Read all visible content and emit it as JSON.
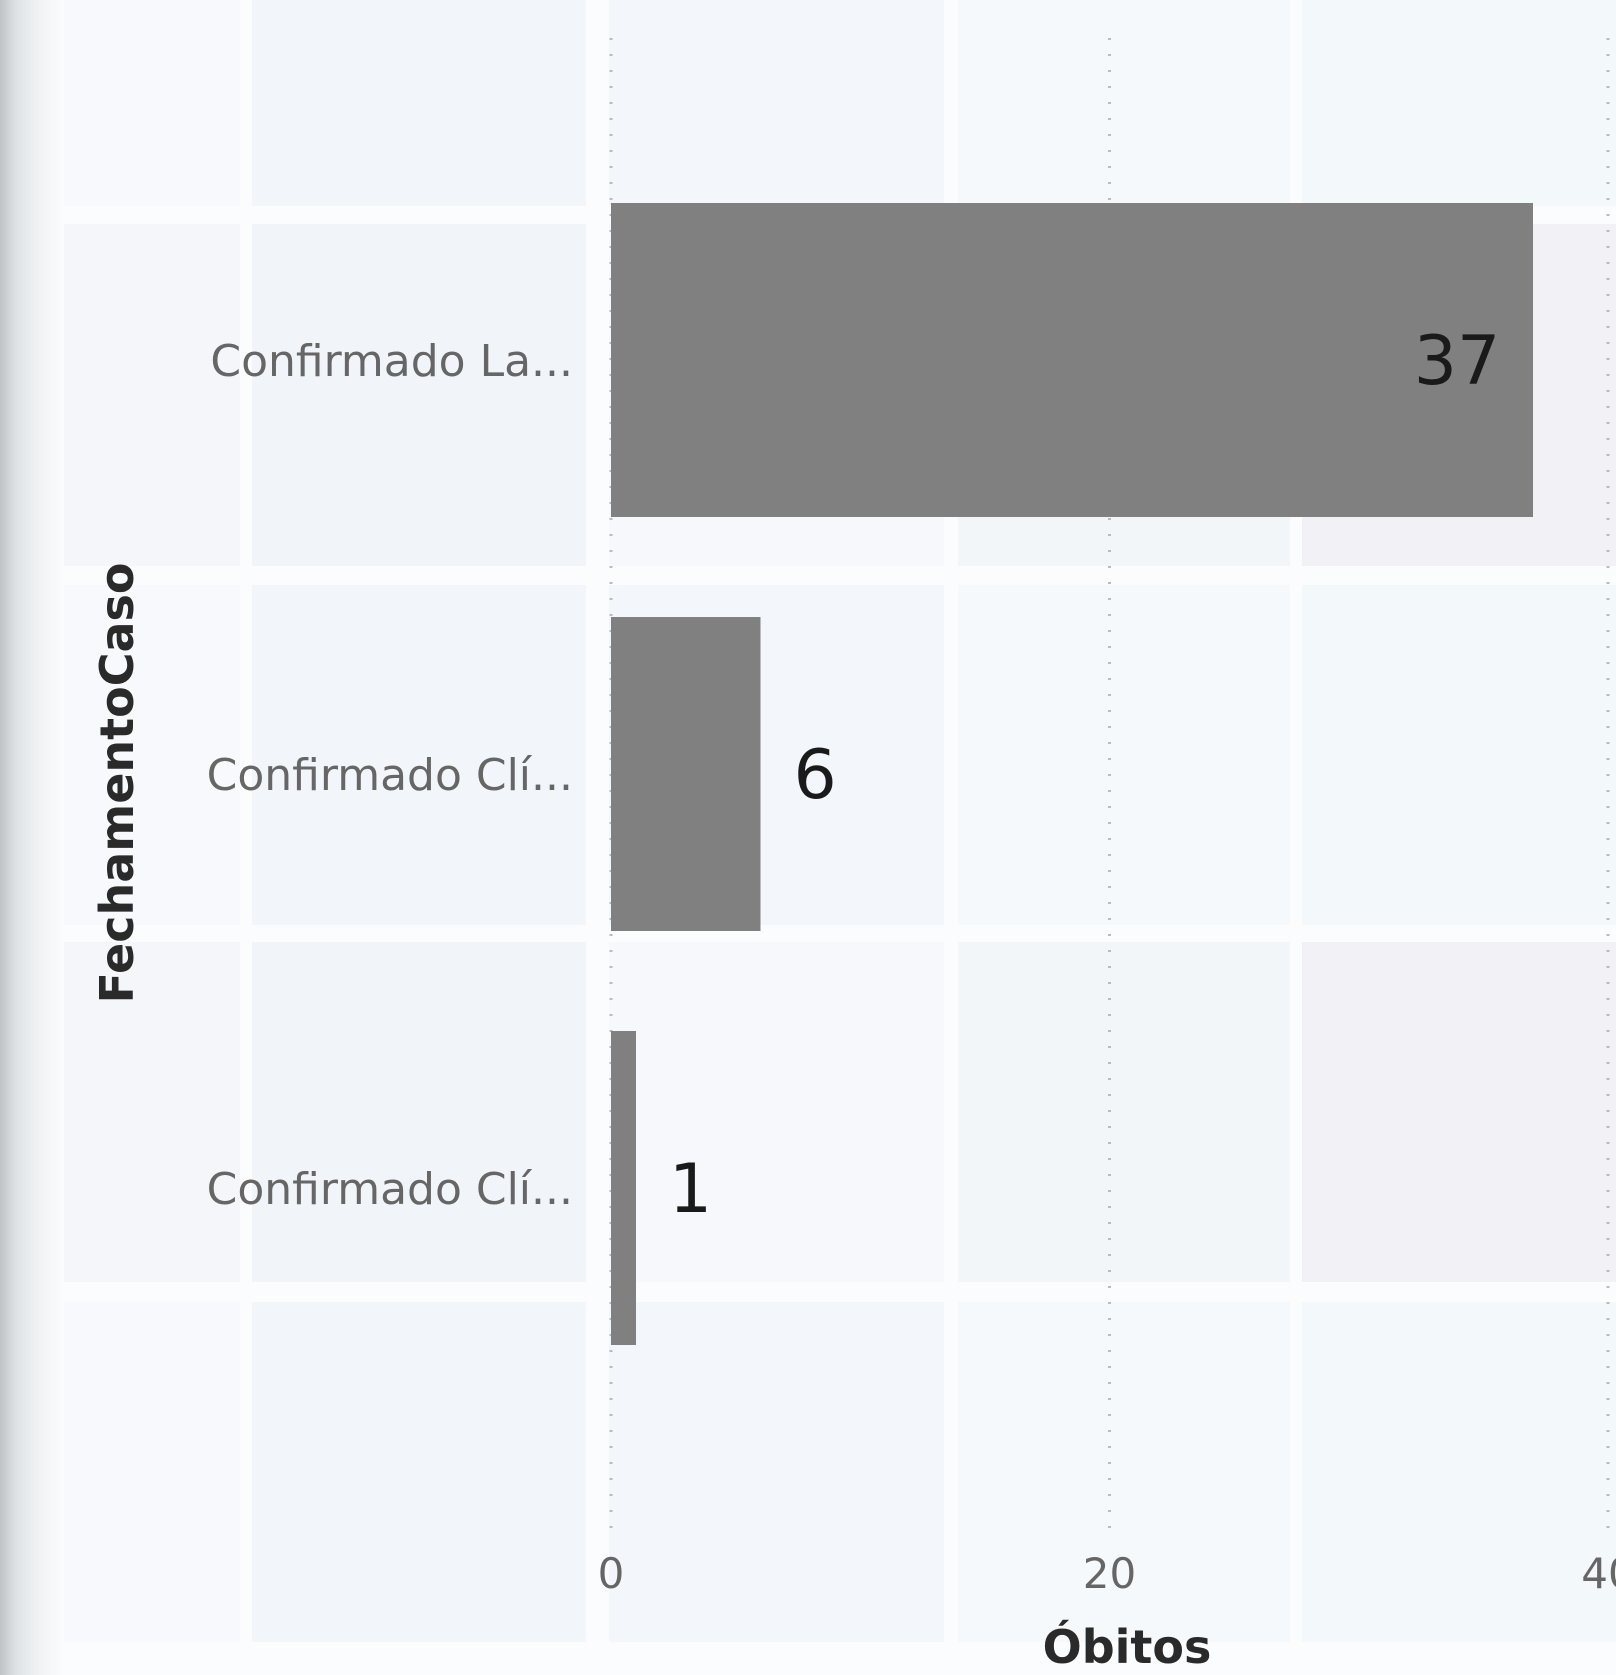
{
  "chart_data": {
    "type": "bar",
    "orientation": "horizontal",
    "categories": [
      "Confirmado La...",
      "Confirmado Clí...",
      "Confirmado Clí..."
    ],
    "values": [
      37,
      6,
      1
    ],
    "data_labels": [
      "37",
      "6",
      "1"
    ],
    "xlabel": "Óbitos",
    "ylabel": "FechamentoCaso",
    "xlim": [
      0,
      40
    ],
    "x_ticks": [
      "0",
      "20",
      "40"
    ],
    "grid": true,
    "grid_style": "dotted",
    "legend": "none"
  },
  "colors": {
    "bar": "#808080",
    "data_label": "#1a1a1a",
    "category_label": "#666666",
    "tick_label": "#666666",
    "axis_title": "#2a2a2a",
    "gridline": "#b8bcc0"
  }
}
